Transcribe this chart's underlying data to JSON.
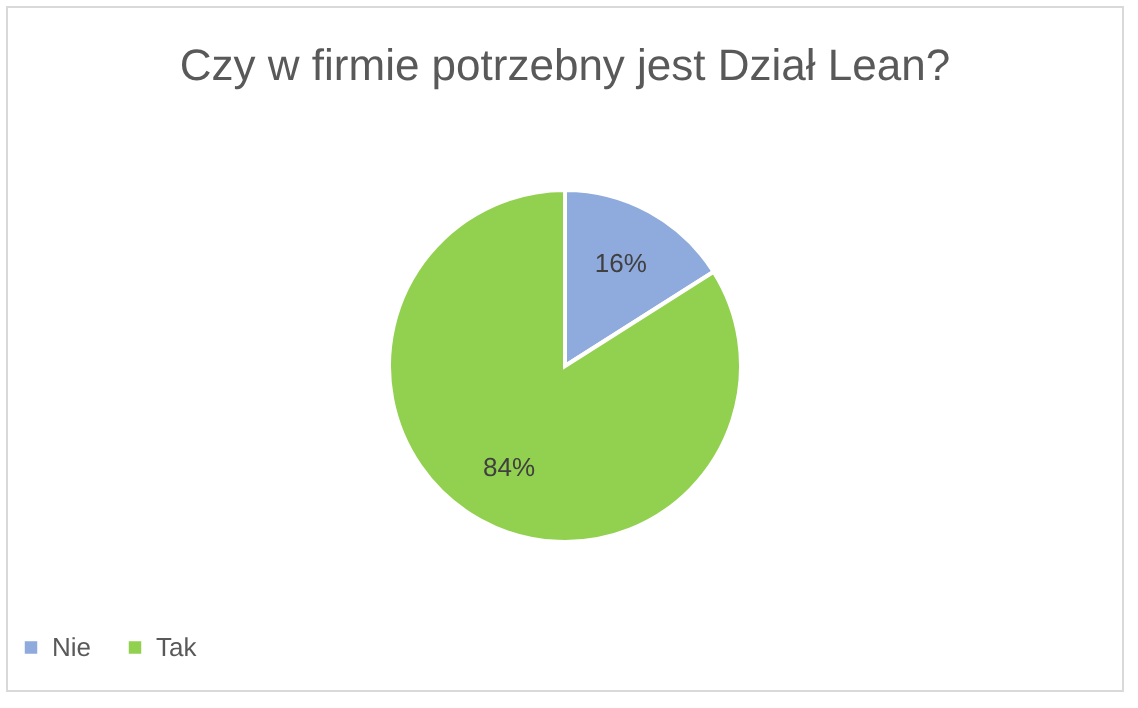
{
  "chart_data": {
    "type": "pie",
    "title": "Czy w firmie potrzebny jest Dział Lean?",
    "categories": [
      "Nie",
      "Tak"
    ],
    "values": [
      16,
      84
    ],
    "colors": [
      "#8faadc",
      "#92d050"
    ],
    "value_labels": [
      "16%",
      "84%"
    ],
    "legend": "bottom"
  }
}
